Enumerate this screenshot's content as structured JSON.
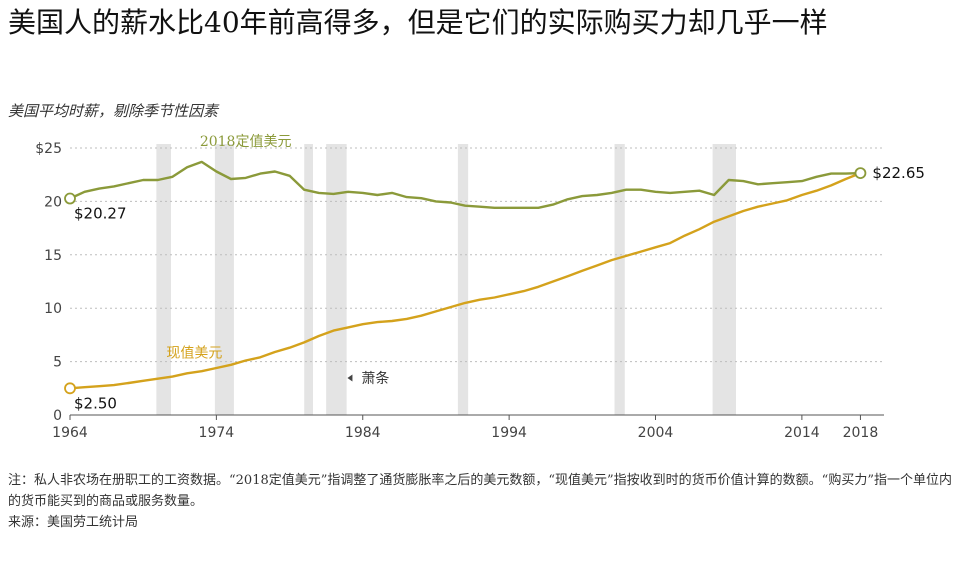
{
  "title": "美国人的薪水比40年前高得多，但是它们的实际购买力却几乎一样",
  "subtitle": "美国平均时薪，剔除季节性因素",
  "notes": {
    "note": "注：私人非农场在册职工的工资数据。“2018定值美元”指调整了通货膨胀率之后的美元数额，“现值美元”指按收到时的货币价值计算的数额。“购买力”指一个单位内的货币能买到的商品或服务数量。",
    "source": "来源：美国劳工统计局"
  },
  "colors": {
    "real": "#8b9a3a",
    "nominal": "#d4a21c",
    "recession": "#e4e4e4",
    "grid": "#bdbdbd"
  },
  "chart_data": {
    "type": "line",
    "xlim": [
      1964,
      2019.2
    ],
    "ylim": [
      0,
      25
    ],
    "yticks": [
      0,
      5,
      10,
      15,
      20,
      25
    ],
    "ytick_labels": [
      "0",
      "5",
      "10",
      "15",
      "20",
      "$25"
    ],
    "xticks": [
      1964,
      1974,
      1984,
      1994,
      2004,
      2014,
      2018
    ],
    "grid": true,
    "recession_label": "萧条",
    "recessions": [
      [
        1969.9,
        1970.9
      ],
      [
        1973.9,
        1975.2
      ],
      [
        1980.0,
        1980.6
      ],
      [
        1981.5,
        1982.9
      ],
      [
        1990.5,
        1991.2
      ],
      [
        2001.2,
        2001.9
      ],
      [
        2007.9,
        2009.5
      ]
    ],
    "series": [
      {
        "name": "2018定值美元",
        "start_label": "$20.27",
        "x": [
          1964,
          1965,
          1966,
          1967,
          1968,
          1969,
          1970,
          1971,
          1972,
          1973,
          1974,
          1975,
          1976,
          1977,
          1978,
          1979,
          1980,
          1981,
          1982,
          1983,
          1984,
          1985,
          1986,
          1987,
          1988,
          1989,
          1990,
          1991,
          1992,
          1993,
          1994,
          1995,
          1996,
          1997,
          1998,
          1999,
          2000,
          2001,
          2002,
          2003,
          2004,
          2005,
          2006,
          2007,
          2008,
          2009,
          2010,
          2011,
          2012,
          2013,
          2014,
          2015,
          2016,
          2017,
          2018
        ],
        "y": [
          20.27,
          20.9,
          21.2,
          21.4,
          21.7,
          22.0,
          22.0,
          22.3,
          23.2,
          23.7,
          22.8,
          22.1,
          22.2,
          22.6,
          22.8,
          22.4,
          21.1,
          20.8,
          20.7,
          20.9,
          20.8,
          20.6,
          20.8,
          20.4,
          20.3,
          20.0,
          19.9,
          19.6,
          19.5,
          19.4,
          19.4,
          19.4,
          19.4,
          19.7,
          20.2,
          20.5,
          20.6,
          20.8,
          21.1,
          21.1,
          20.9,
          20.8,
          20.9,
          21.0,
          20.6,
          22.0,
          21.9,
          21.6,
          21.7,
          21.8,
          21.9,
          22.3,
          22.6,
          22.6,
          22.65
        ],
        "color": "#8b9a3a"
      },
      {
        "name": "现值美元",
        "start_label": "$2.50",
        "end_label": "$22.65",
        "x": [
          1964,
          1965,
          1966,
          1967,
          1968,
          1969,
          1970,
          1971,
          1972,
          1973,
          1974,
          1975,
          1976,
          1977,
          1978,
          1979,
          1980,
          1981,
          1982,
          1983,
          1984,
          1985,
          1986,
          1987,
          1988,
          1989,
          1990,
          1991,
          1992,
          1993,
          1994,
          1995,
          1996,
          1997,
          1998,
          1999,
          2000,
          2001,
          2002,
          2003,
          2004,
          2005,
          2006,
          2007,
          2008,
          2009,
          2010,
          2011,
          2012,
          2013,
          2014,
          2015,
          2016,
          2017,
          2018
        ],
        "y": [
          2.5,
          2.6,
          2.7,
          2.8,
          3.0,
          3.2,
          3.4,
          3.6,
          3.9,
          4.1,
          4.4,
          4.7,
          5.1,
          5.4,
          5.9,
          6.3,
          6.8,
          7.4,
          7.9,
          8.2,
          8.5,
          8.7,
          8.8,
          9.0,
          9.3,
          9.7,
          10.1,
          10.5,
          10.8,
          11.0,
          11.3,
          11.6,
          12.0,
          12.5,
          13.0,
          13.5,
          14.0,
          14.5,
          14.9,
          15.3,
          15.7,
          16.1,
          16.8,
          17.4,
          18.1,
          18.6,
          19.1,
          19.5,
          19.8,
          20.1,
          20.6,
          21.0,
          21.5,
          22.1,
          22.65
        ],
        "color": "#d4a21c"
      }
    ]
  }
}
